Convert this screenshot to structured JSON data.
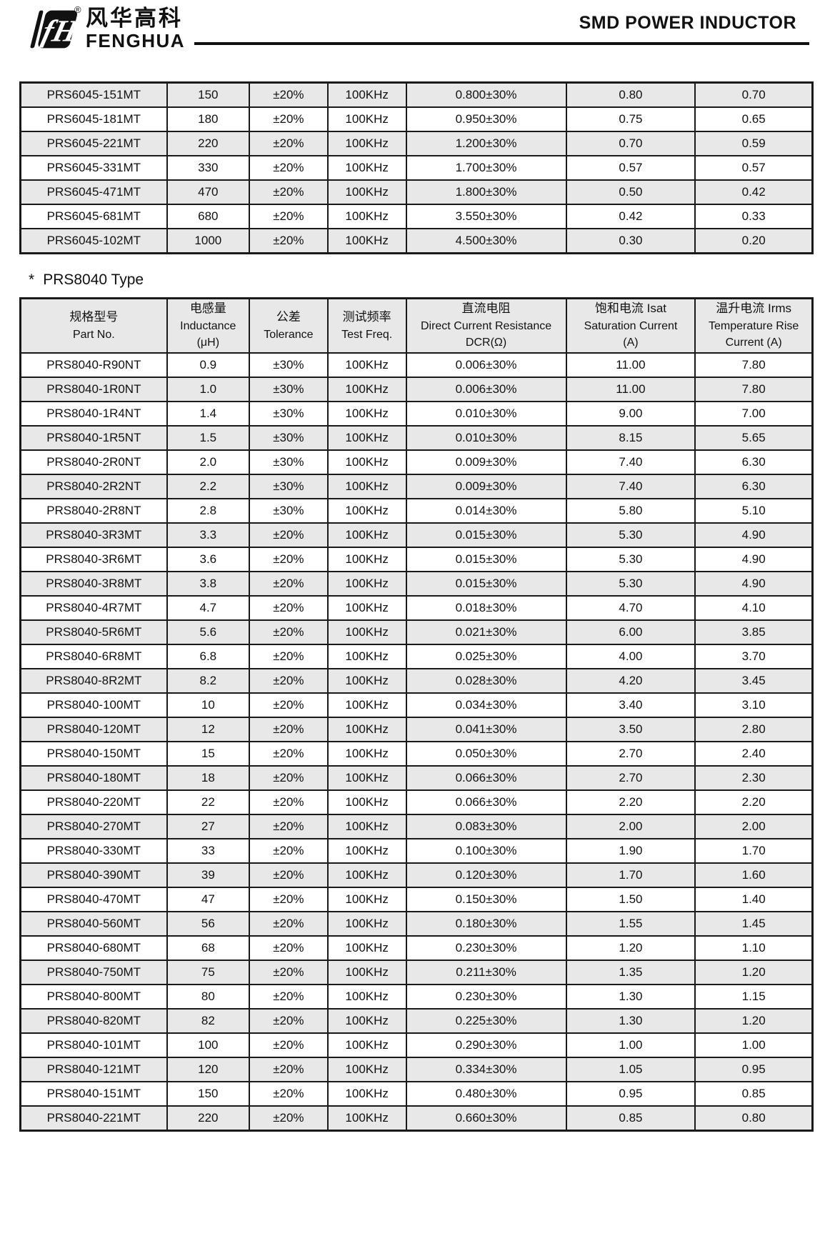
{
  "header": {
    "brand_cn": "风华高科",
    "brand_en": "FENGHUA",
    "registered_mark": "®",
    "logo_glyph": "fH",
    "title": "SMD POWER INDUCTOR"
  },
  "colors": {
    "ink": "#111111",
    "row_shade": "#e8e8e8",
    "table_border": "#1a1a1a"
  },
  "section2": {
    "star": "*",
    "heading": "PRS8040 Type"
  },
  "table1": {
    "rows": [
      [
        "PRS6045-151MT",
        "150",
        "±20%",
        "100KHz",
        "0.800±30%",
        "0.80",
        "0.70"
      ],
      [
        "PRS6045-181MT",
        "180",
        "±20%",
        "100KHz",
        "0.950±30%",
        "0.75",
        "0.65"
      ],
      [
        "PRS6045-221MT",
        "220",
        "±20%",
        "100KHz",
        "1.200±30%",
        "0.70",
        "0.59"
      ],
      [
        "PRS6045-331MT",
        "330",
        "±20%",
        "100KHz",
        "1.700±30%",
        "0.57",
        "0.57"
      ],
      [
        "PRS6045-471MT",
        "470",
        "±20%",
        "100KHz",
        "1.800±30%",
        "0.50",
        "0.42"
      ],
      [
        "PRS6045-681MT",
        "680",
        "±20%",
        "100KHz",
        "3.550±30%",
        "0.42",
        "0.33"
      ],
      [
        "PRS6045-102MT",
        "1000",
        "±20%",
        "100KHz",
        "4.500±30%",
        "0.30",
        "0.20"
      ]
    ]
  },
  "table2": {
    "columns": [
      {
        "key": "part-no",
        "lines": [
          "规格型号",
          "Part No."
        ]
      },
      {
        "key": "inductance",
        "lines": [
          "电感量",
          "Inductance",
          "(μH)"
        ]
      },
      {
        "key": "tolerance",
        "lines": [
          "公差",
          "Tolerance"
        ]
      },
      {
        "key": "test-freq",
        "lines": [
          "测试频率",
          "Test Freq."
        ]
      },
      {
        "key": "dcr",
        "lines": [
          "直流电阻",
          "Direct Current Resistance",
          "DCR(Ω)"
        ]
      },
      {
        "key": "isat",
        "lines": [
          "饱和电流  Isat",
          "Saturation Current",
          "(A)"
        ]
      },
      {
        "key": "irms",
        "lines": [
          "温升电流  Irms",
          "Temperature Rise",
          "Current (A)"
        ]
      }
    ],
    "rows": [
      [
        "PRS8040-R90NT",
        "0.9",
        "±30%",
        "100KHz",
        "0.006±30%",
        "11.00",
        "7.80"
      ],
      [
        "PRS8040-1R0NT",
        "1.0",
        "±30%",
        "100KHz",
        "0.006±30%",
        "11.00",
        "7.80"
      ],
      [
        "PRS8040-1R4NT",
        "1.4",
        "±30%",
        "100KHz",
        "0.010±30%",
        "9.00",
        "7.00"
      ],
      [
        "PRS8040-1R5NT",
        "1.5",
        "±30%",
        "100KHz",
        "0.010±30%",
        "8.15",
        "5.65"
      ],
      [
        "PRS8040-2R0NT",
        "2.0",
        "±30%",
        "100KHz",
        "0.009±30%",
        "7.40",
        "6.30"
      ],
      [
        "PRS8040-2R2NT",
        "2.2",
        "±30%",
        "100KHz",
        "0.009±30%",
        "7.40",
        "6.30"
      ],
      [
        "PRS8040-2R8NT",
        "2.8",
        "±30%",
        "100KHz",
        "0.014±30%",
        "5.80",
        "5.10"
      ],
      [
        "PRS8040-3R3MT",
        "3.3",
        "±20%",
        "100KHz",
        "0.015±30%",
        "5.30",
        "4.90"
      ],
      [
        "PRS8040-3R6MT",
        "3.6",
        "±20%",
        "100KHz",
        "0.015±30%",
        "5.30",
        "4.90"
      ],
      [
        "PRS8040-3R8MT",
        "3.8",
        "±20%",
        "100KHz",
        "0.015±30%",
        "5.30",
        "4.90"
      ],
      [
        "PRS8040-4R7MT",
        "4.7",
        "±20%",
        "100KHz",
        "0.018±30%",
        "4.70",
        "4.10"
      ],
      [
        "PRS8040-5R6MT",
        "5.6",
        "±20%",
        "100KHz",
        "0.021±30%",
        "6.00",
        "3.85"
      ],
      [
        "PRS8040-6R8MT",
        "6.8",
        "±20%",
        "100KHz",
        "0.025±30%",
        "4.00",
        "3.70"
      ],
      [
        "PRS8040-8R2MT",
        "8.2",
        "±20%",
        "100KHz",
        "0.028±30%",
        "4.20",
        "3.45"
      ],
      [
        "PRS8040-100MT",
        "10",
        "±20%",
        "100KHz",
        "0.034±30%",
        "3.40",
        "3.10"
      ],
      [
        "PRS8040-120MT",
        "12",
        "±20%",
        "100KHz",
        "0.041±30%",
        "3.50",
        "2.80"
      ],
      [
        "PRS8040-150MT",
        "15",
        "±20%",
        "100KHz",
        "0.050±30%",
        "2.70",
        "2.40"
      ],
      [
        "PRS8040-180MT",
        "18",
        "±20%",
        "100KHz",
        "0.066±30%",
        "2.70",
        "2.30"
      ],
      [
        "PRS8040-220MT",
        "22",
        "±20%",
        "100KHz",
        "0.066±30%",
        "2.20",
        "2.20"
      ],
      [
        "PRS8040-270MT",
        "27",
        "±20%",
        "100KHz",
        "0.083±30%",
        "2.00",
        "2.00"
      ],
      [
        "PRS8040-330MT",
        "33",
        "±20%",
        "100KHz",
        "0.100±30%",
        "1.90",
        "1.70"
      ],
      [
        "PRS8040-390MT",
        "39",
        "±20%",
        "100KHz",
        "0.120±30%",
        "1.70",
        "1.60"
      ],
      [
        "PRS8040-470MT",
        "47",
        "±20%",
        "100KHz",
        "0.150±30%",
        "1.50",
        "1.40"
      ],
      [
        "PRS8040-560MT",
        "56",
        "±20%",
        "100KHz",
        "0.180±30%",
        "1.55",
        "1.45"
      ],
      [
        "PRS8040-680MT",
        "68",
        "±20%",
        "100KHz",
        "0.230±30%",
        "1.20",
        "1.10"
      ],
      [
        "PRS8040-750MT",
        "75",
        "±20%",
        "100KHz",
        "0.211±30%",
        "1.35",
        "1.20"
      ],
      [
        "PRS8040-800MT",
        "80",
        "±20%",
        "100KHz",
        "0.230±30%",
        "1.30",
        "1.15"
      ],
      [
        "PRS8040-820MT",
        "82",
        "±20%",
        "100KHz",
        "0.225±30%",
        "1.30",
        "1.20"
      ],
      [
        "PRS8040-101MT",
        "100",
        "±20%",
        "100KHz",
        "0.290±30%",
        "1.00",
        "1.00"
      ],
      [
        "PRS8040-121MT",
        "120",
        "±20%",
        "100KHz",
        "0.334±30%",
        "1.05",
        "0.95"
      ],
      [
        "PRS8040-151MT",
        "150",
        "±20%",
        "100KHz",
        "0.480±30%",
        "0.95",
        "0.85"
      ],
      [
        "PRS8040-221MT",
        "220",
        "±20%",
        "100KHz",
        "0.660±30%",
        "0.85",
        "0.80"
      ]
    ]
  }
}
